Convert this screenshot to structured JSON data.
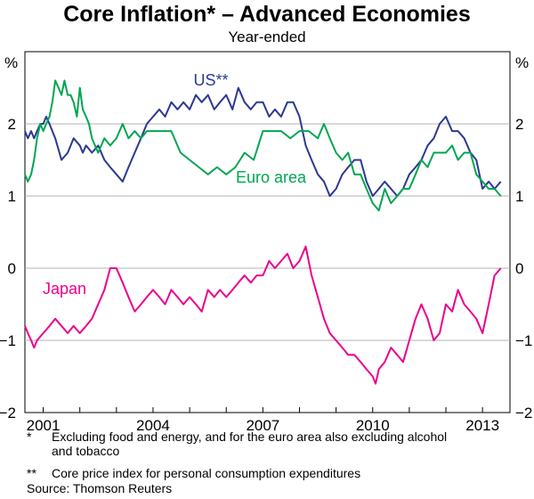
{
  "chart_data": {
    "type": "line",
    "title": "Core Inflation* – Advanced Economies",
    "subtitle": "Year-ended",
    "ylabel_left": "%",
    "ylabel_right": "%",
    "ylim": [
      -2,
      3
    ],
    "yticks": [
      -2,
      -1,
      0,
      1,
      2
    ],
    "xlim": [
      2000.5,
      2013.75
    ],
    "xticks": [
      "2001",
      "2004",
      "2007",
      "2010",
      "2013"
    ],
    "grid": true,
    "series": [
      {
        "name": "US**",
        "color": "#2B3990",
        "x": [
          2000.5,
          2000.58,
          2000.67,
          2000.75,
          2000.83,
          2000.92,
          2001.0,
          2001.08,
          2001.17,
          2001.25,
          2001.33,
          2001.5,
          2001.67,
          2001.83,
          2002.0,
          2002.08,
          2002.17,
          2002.33,
          2002.5,
          2002.67,
          2002.83,
          2003.0,
          2003.17,
          2003.33,
          2003.5,
          2003.67,
          2003.83,
          2004.0,
          2004.17,
          2004.33,
          2004.5,
          2004.67,
          2004.83,
          2005.0,
          2005.17,
          2005.33,
          2005.5,
          2005.67,
          2005.83,
          2006.0,
          2006.17,
          2006.33,
          2006.5,
          2006.67,
          2006.83,
          2007.0,
          2007.17,
          2007.33,
          2007.5,
          2007.67,
          2007.83,
          2008.0,
          2008.17,
          2008.33,
          2008.5,
          2008.67,
          2008.83,
          2009.0,
          2009.17,
          2009.33,
          2009.5,
          2009.67,
          2009.83,
          2010.0,
          2010.17,
          2010.33,
          2010.5,
          2010.67,
          2010.83,
          2011.0,
          2011.17,
          2011.33,
          2011.5,
          2011.67,
          2011.83,
          2012.0,
          2012.17,
          2012.33,
          2012.5,
          2012.67,
          2012.83,
          2013.0,
          2013.17,
          2013.33,
          2013.5
        ],
        "values": [
          1.9,
          1.8,
          1.9,
          1.8,
          1.9,
          2.0,
          2.0,
          2.1,
          2.0,
          1.9,
          1.8,
          1.5,
          1.6,
          1.8,
          1.7,
          1.6,
          1.7,
          1.6,
          1.7,
          1.5,
          1.4,
          1.3,
          1.2,
          1.4,
          1.6,
          1.8,
          2.0,
          2.1,
          2.2,
          2.1,
          2.3,
          2.2,
          2.3,
          2.2,
          2.4,
          2.3,
          2.4,
          2.2,
          2.3,
          2.4,
          2.2,
          2.5,
          2.3,
          2.2,
          2.3,
          2.3,
          2.1,
          2.2,
          2.1,
          2.3,
          2.3,
          2.1,
          1.7,
          1.5,
          1.3,
          1.2,
          1.0,
          1.1,
          1.3,
          1.4,
          1.5,
          1.5,
          1.2,
          1.0,
          1.1,
          1.2,
          1.1,
          1.0,
          1.1,
          1.3,
          1.4,
          1.5,
          1.7,
          1.8,
          2.0,
          2.1,
          1.9,
          1.9,
          1.8,
          1.6,
          1.5,
          1.1,
          1.2,
          1.1,
          1.2
        ]
      },
      {
        "name": "Euro area",
        "color": "#00A651",
        "x": [
          2000.5,
          2000.58,
          2000.67,
          2000.75,
          2000.83,
          2000.92,
          2001.0,
          2001.08,
          2001.17,
          2001.25,
          2001.33,
          2001.42,
          2001.5,
          2001.58,
          2001.67,
          2001.75,
          2001.83,
          2001.92,
          2002.0,
          2002.08,
          2002.17,
          2002.25,
          2002.33,
          2002.5,
          2002.67,
          2002.83,
          2003.0,
          2003.17,
          2003.33,
          2003.5,
          2003.67,
          2003.83,
          2004.0,
          2004.25,
          2004.5,
          2004.75,
          2005.0,
          2005.25,
          2005.5,
          2005.75,
          2006.0,
          2006.25,
          2006.5,
          2006.75,
          2007.0,
          2007.25,
          2007.5,
          2007.75,
          2008.0,
          2008.25,
          2008.5,
          2008.67,
          2008.83,
          2009.0,
          2009.17,
          2009.33,
          2009.5,
          2009.67,
          2009.83,
          2010.0,
          2010.17,
          2010.33,
          2010.5,
          2010.67,
          2010.83,
          2011.0,
          2011.17,
          2011.33,
          2011.5,
          2011.67,
          2011.83,
          2012.0,
          2012.17,
          2012.33,
          2012.5,
          2012.67,
          2012.83,
          2013.0,
          2013.17,
          2013.33,
          2013.5
        ],
        "values": [
          1.3,
          1.2,
          1.3,
          1.5,
          1.8,
          2.0,
          1.9,
          2.0,
          2.1,
          2.3,
          2.6,
          2.5,
          2.4,
          2.6,
          2.4,
          2.4,
          2.3,
          2.1,
          2.5,
          2.2,
          2.1,
          2.0,
          1.8,
          1.6,
          1.8,
          1.7,
          1.8,
          2.0,
          1.8,
          1.9,
          1.8,
          1.9,
          1.9,
          1.9,
          1.9,
          1.6,
          1.5,
          1.4,
          1.3,
          1.4,
          1.3,
          1.4,
          1.6,
          1.5,
          1.9,
          1.9,
          1.9,
          1.8,
          1.9,
          1.9,
          1.8,
          2.0,
          1.8,
          1.6,
          1.5,
          1.6,
          1.3,
          1.3,
          1.1,
          0.9,
          0.8,
          1.1,
          0.9,
          1.0,
          1.1,
          1.1,
          1.3,
          1.5,
          1.4,
          1.6,
          1.6,
          1.6,
          1.7,
          1.5,
          1.6,
          1.6,
          1.3,
          1.2,
          1.1,
          1.1,
          1.0
        ]
      },
      {
        "name": "Japan",
        "color": "#EC008C",
        "x": [
          2000.5,
          2000.58,
          2000.67,
          2000.75,
          2000.83,
          2001.0,
          2001.17,
          2001.33,
          2001.5,
          2001.67,
          2001.83,
          2002.0,
          2002.17,
          2002.33,
          2002.5,
          2002.67,
          2002.83,
          2003.0,
          2003.17,
          2003.33,
          2003.5,
          2003.67,
          2003.83,
          2004.0,
          2004.17,
          2004.33,
          2004.5,
          2004.67,
          2004.83,
          2005.0,
          2005.17,
          2005.33,
          2005.5,
          2005.67,
          2005.83,
          2006.0,
          2006.17,
          2006.33,
          2006.5,
          2006.67,
          2006.83,
          2007.0,
          2007.17,
          2007.33,
          2007.5,
          2007.67,
          2007.83,
          2008.0,
          2008.17,
          2008.33,
          2008.5,
          2008.67,
          2008.83,
          2009.0,
          2009.17,
          2009.33,
          2009.5,
          2009.67,
          2009.83,
          2010.0,
          2010.08,
          2010.17,
          2010.33,
          2010.5,
          2010.67,
          2010.83,
          2011.0,
          2011.17,
          2011.33,
          2011.5,
          2011.67,
          2011.83,
          2012.0,
          2012.17,
          2012.33,
          2012.5,
          2012.67,
          2012.83,
          2013.0,
          2013.17,
          2013.33,
          2013.5
        ],
        "values": [
          -0.8,
          -0.9,
          -1.0,
          -1.1,
          -1.0,
          -0.9,
          -0.8,
          -0.7,
          -0.8,
          -0.9,
          -0.8,
          -0.9,
          -0.8,
          -0.7,
          -0.5,
          -0.3,
          0.0,
          0.0,
          -0.2,
          -0.4,
          -0.6,
          -0.5,
          -0.4,
          -0.3,
          -0.4,
          -0.5,
          -0.3,
          -0.4,
          -0.5,
          -0.4,
          -0.5,
          -0.6,
          -0.3,
          -0.4,
          -0.3,
          -0.4,
          -0.3,
          -0.2,
          -0.1,
          -0.2,
          -0.1,
          -0.1,
          0.1,
          0.0,
          0.1,
          0.2,
          0.0,
          0.1,
          0.3,
          -0.1,
          -0.4,
          -0.7,
          -0.9,
          -1.0,
          -1.1,
          -1.2,
          -1.2,
          -1.3,
          -1.4,
          -1.5,
          -1.6,
          -1.4,
          -1.3,
          -1.1,
          -1.2,
          -1.3,
          -1.0,
          -0.7,
          -0.5,
          -0.7,
          -1.0,
          -0.9,
          -0.5,
          -0.6,
          -0.3,
          -0.5,
          -0.6,
          -0.7,
          -0.9,
          -0.5,
          -0.1,
          0.0
        ]
      }
    ]
  },
  "footnotes": [
    {
      "mark": "*",
      "text": "Excluding food and energy, and for the euro area also excluding alcohol",
      "cont": "and tobacco"
    },
    {
      "mark": "**",
      "text": "Core price index for personal consumption expenditures"
    }
  ],
  "source": "Source: Thomson Reuters"
}
